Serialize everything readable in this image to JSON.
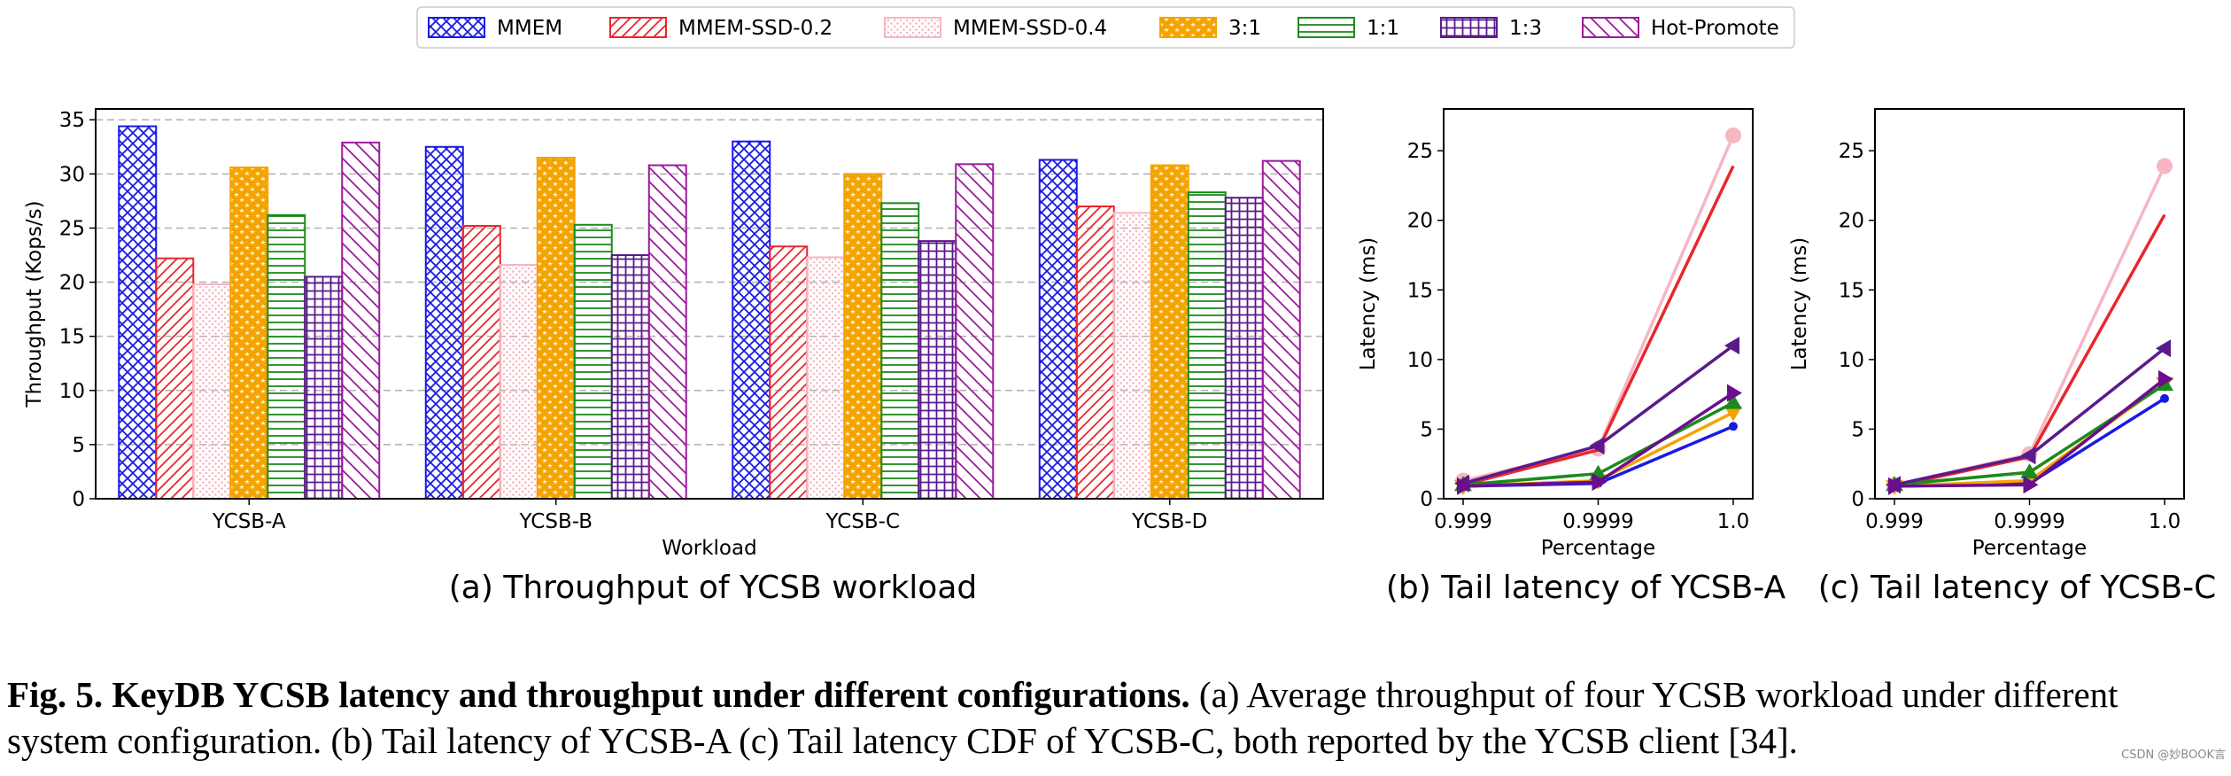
{
  "legend": [
    {
      "name": "MMEM",
      "color": "#1a1ae6",
      "pattern": "cross"
    },
    {
      "name": "MMEM-SSD-0.2",
      "color": "#e8272d",
      "pattern": "fdiag"
    },
    {
      "name": "MMEM-SSD-0.4",
      "color": "#f7b6c2",
      "pattern": "dots"
    },
    {
      "name": "3:1",
      "color": "#f5a300",
      "pattern": "stars"
    },
    {
      "name": "1:1",
      "color": "#1c8a1c",
      "pattern": "hlines"
    },
    {
      "name": "1:3",
      "color": "#5b1a8c",
      "pattern": "grid"
    },
    {
      "name": "Hot-Promote",
      "color": "#9c1a9c",
      "pattern": "bdiag"
    }
  ],
  "chart_data": [
    {
      "type": "bar",
      "title": "(a) Throughput of YCSB workload",
      "xlabel": "Workload",
      "ylabel": "Throughput (Kops/s)",
      "ylim": [
        0,
        36
      ],
      "yticks": [
        0,
        5,
        10,
        15,
        20,
        25,
        30,
        35
      ],
      "grid": true,
      "categories": [
        "YCSB-A",
        "YCSB-B",
        "YCSB-C",
        "YCSB-D"
      ],
      "series": [
        {
          "name": "MMEM",
          "values": [
            34.4,
            32.5,
            33.0,
            31.3
          ]
        },
        {
          "name": "MMEM-SSD-0.2",
          "values": [
            22.2,
            25.2,
            23.3,
            27.0
          ]
        },
        {
          "name": "MMEM-SSD-0.4",
          "values": [
            19.8,
            21.6,
            22.3,
            26.4
          ]
        },
        {
          "name": "3:1",
          "values": [
            30.6,
            31.5,
            30.0,
            30.8
          ]
        },
        {
          "name": "1:1",
          "values": [
            26.2,
            25.3,
            27.3,
            28.3
          ]
        },
        {
          "name": "1:3",
          "values": [
            20.5,
            22.5,
            23.8,
            27.8
          ]
        },
        {
          "name": "Hot-Promote",
          "values": [
            32.9,
            30.8,
            30.9,
            31.2
          ]
        }
      ]
    },
    {
      "type": "line",
      "title": "(b) Tail latency of YCSB-A",
      "xlabel": "Percentage",
      "ylabel": "Latency (ms)",
      "x": [
        "0.999",
        "0.9999",
        "1.0"
      ],
      "ylim": [
        0,
        28
      ],
      "yticks": [
        0,
        5,
        10,
        15,
        20,
        25
      ],
      "series": [
        {
          "name": "MMEM",
          "values": [
            0.9,
            1.1,
            5.2
          ]
        },
        {
          "name": "MMEM-SSD-0.2",
          "values": [
            1.0,
            3.5,
            23.9
          ]
        },
        {
          "name": "MMEM-SSD-0.4",
          "values": [
            1.3,
            3.6,
            26.1
          ]
        },
        {
          "name": "3:1",
          "values": [
            0.9,
            1.3,
            6.2
          ]
        },
        {
          "name": "1:1",
          "values": [
            1.0,
            1.8,
            6.9
          ]
        },
        {
          "name": "1:3",
          "values": [
            1.1,
            3.8,
            11.0
          ]
        },
        {
          "name": "Hot-Promote",
          "values": [
            0.9,
            1.2,
            7.6
          ]
        }
      ]
    },
    {
      "type": "line",
      "title": "(c) Tail latency of YCSB-C",
      "xlabel": "Percentage",
      "ylabel": "Latency (ms)",
      "x": [
        "0.999",
        "0.9999",
        "1.0"
      ],
      "ylim": [
        0,
        28
      ],
      "yticks": [
        0,
        5,
        10,
        15,
        20,
        25
      ],
      "series": [
        {
          "name": "MMEM",
          "values": [
            0.9,
            1.1,
            7.2
          ]
        },
        {
          "name": "MMEM-SSD-0.2",
          "values": [
            0.9,
            3.0,
            20.4
          ]
        },
        {
          "name": "MMEM-SSD-0.4",
          "values": [
            1.0,
            3.2,
            23.9
          ]
        },
        {
          "name": "3:1",
          "values": [
            0.9,
            1.3,
            8.3
          ]
        },
        {
          "name": "1:1",
          "values": [
            1.0,
            1.9,
            8.2
          ]
        },
        {
          "name": "1:3",
          "values": [
            1.0,
            3.1,
            10.8
          ]
        },
        {
          "name": "Hot-Promote",
          "values": [
            0.9,
            1.0,
            8.6
          ]
        }
      ]
    }
  ],
  "caption": {
    "bold": "Fig. 5. KeyDB YCSB latency and throughput under different configurations.",
    "text": " (a) Average throughput of four YCSB workload under different system configuration. (b) Tail latency of YCSB-A (c) Tail latency CDF of YCSB-C, both reported by the YCSB client [34]."
  },
  "watermark": "CSDN @妙BOOK言"
}
